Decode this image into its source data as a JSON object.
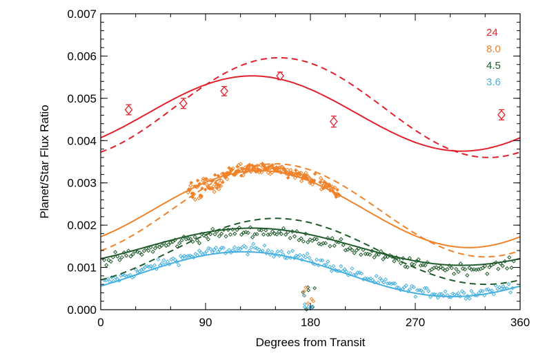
{
  "chart_data": {
    "type": "scatter",
    "title": "",
    "xlabel": "Degrees from Transit",
    "ylabel": "Planet/Star Flux Ratio",
    "xlim": [
      0,
      360
    ],
    "ylim": [
      0.0,
      0.007
    ],
    "xticks": [
      0,
      90,
      180,
      270,
      360
    ],
    "xtick_labels": [
      "0",
      "90",
      "180",
      "270",
      "360"
    ],
    "yticks": [
      0.0,
      0.001,
      0.002,
      0.003,
      0.004,
      0.005,
      0.006,
      0.007
    ],
    "ytick_labels": [
      "0.000",
      "0.001",
      "0.002",
      "0.003",
      "0.004",
      "0.005",
      "0.006",
      "0.007"
    ],
    "grid": false,
    "legend_position": "top-right",
    "series": [
      {
        "name": "24",
        "color": "#e0202a",
        "points": [
          {
            "x": 24,
            "y": 0.00473,
            "err": 0.00012
          },
          {
            "x": 71,
            "y": 0.00488,
            "err": 0.00012
          },
          {
            "x": 106,
            "y": 0.00517,
            "err": 0.00011
          },
          {
            "x": 154,
            "y": 0.00553,
            "err": 9e-05
          },
          {
            "x": 200,
            "y": 0.00445,
            "err": 0.00013
          },
          {
            "x": 344,
            "y": 0.00461,
            "err": 0.00012
          }
        ],
        "model_solid": {
          "mean": 0.00464,
          "amp": 0.00089,
          "peak": 130
        },
        "model_dashed": {
          "mean": 0.00478,
          "amp": 0.00118,
          "peak": 153
        }
      },
      {
        "name": "8.0",
        "color": "#f0822a",
        "scatter_range": [
          75,
          205
        ],
        "model_solid": {
          "mean": 0.00238,
          "amp": 0.00091,
          "peak": 136
        },
        "model_dashed": {
          "mean": 0.00235,
          "amp": 0.0011,
          "peak": 150
        }
      },
      {
        "name": "4.5",
        "color": "#1e5a2a",
        "scatter_range": [
          3,
          355
        ],
        "model_solid": {
          "mean": 0.00149,
          "amp": 0.00044,
          "peak": 130
        },
        "model_dashed": {
          "mean": 0.00138,
          "amp": 0.00078,
          "peak": 150
        }
      },
      {
        "name": "3.6",
        "color": "#45b0e0",
        "scatter_range": [
          3,
          355
        ],
        "model_solid": {
          "mean": 0.00084,
          "amp": 0.00053,
          "peak": 122
        }
      }
    ]
  }
}
